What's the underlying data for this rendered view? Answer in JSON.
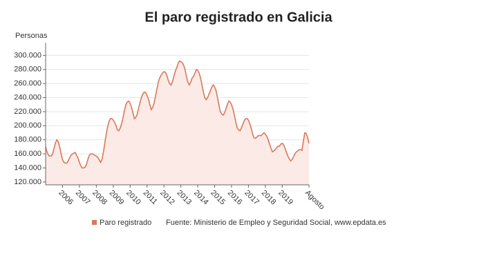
{
  "chart_data": {
    "type": "line",
    "title": "El paro registrado en Galicia",
    "y_label": "Personas",
    "source": "Fuente: Ministerio de Empleo y Seguridad Social, www.epdata.es",
    "categories": [
      null,
      null,
      null,
      null,
      null,
      null,
      null,
      null,
      null,
      null,
      null,
      null,
      "2006",
      null,
      null,
      null,
      null,
      null,
      null,
      null,
      null,
      null,
      null,
      null,
      "2007",
      null,
      null,
      null,
      null,
      null,
      null,
      null,
      null,
      null,
      null,
      null,
      "2008",
      null,
      null,
      null,
      null,
      null,
      null,
      null,
      null,
      null,
      null,
      null,
      "2009",
      null,
      null,
      null,
      null,
      null,
      null,
      null,
      null,
      null,
      null,
      null,
      "2010",
      null,
      null,
      null,
      null,
      null,
      null,
      null,
      null,
      null,
      null,
      null,
      "2011",
      null,
      null,
      null,
      null,
      null,
      null,
      null,
      null,
      null,
      null,
      null,
      "2012",
      null,
      null,
      null,
      null,
      null,
      null,
      null,
      null,
      null,
      null,
      null,
      "2013",
      null,
      null,
      null,
      null,
      null,
      null,
      null,
      null,
      null,
      null,
      null,
      "2014",
      null,
      null,
      null,
      null,
      null,
      null,
      null,
      null,
      null,
      null,
      null,
      "2015",
      null,
      null,
      null,
      null,
      null,
      null,
      null,
      null,
      null,
      null,
      null,
      "2016",
      null,
      null,
      null,
      null,
      null,
      null,
      null,
      null,
      null,
      null,
      null,
      "2017",
      null,
      null,
      null,
      null,
      null,
      null,
      null,
      null,
      null,
      null,
      null,
      "2018",
      null,
      null,
      null,
      null,
      null,
      null,
      null,
      null,
      null,
      null,
      null,
      "2019",
      null,
      null,
      null,
      null,
      null,
      null,
      null,
      null,
      null,
      null,
      null,
      null,
      null,
      null,
      null,
      null,
      null,
      null,
      "Agosto"
    ],
    "series": [
      {
        "name": "Paro registrado",
        "color": "#d9785a",
        "fill": "#fbeae6",
        "values": [
          170000,
          163000,
          158000,
          157000,
          157000,
          160000,
          168000,
          176000,
          180000,
          177000,
          170000,
          160000,
          152000,
          148000,
          147000,
          147000,
          150000,
          154000,
          158000,
          160000,
          161000,
          162000,
          158000,
          154000,
          148000,
          143000,
          140000,
          140000,
          141000,
          145000,
          152000,
          158000,
          160000,
          160000,
          159000,
          158000,
          157000,
          155000,
          152000,
          148000,
          152000,
          162000,
          175000,
          188000,
          198000,
          206000,
          210000,
          210000,
          208000,
          205000,
          200000,
          194000,
          193000,
          197000,
          203000,
          212000,
          222000,
          230000,
          234000,
          235000,
          232000,
          226000,
          218000,
          210000,
          212000,
          216000,
          225000,
          233000,
          240000,
          245000,
          248000,
          247000,
          243000,
          238000,
          230000,
          223000,
          226000,
          232000,
          242000,
          252000,
          262000,
          268000,
          272000,
          275000,
          277000,
          276000,
          272000,
          265000,
          260000,
          258000,
          262000,
          270000,
          277000,
          282000,
          288000,
          292000,
          291000,
          290000,
          286000,
          280000,
          270000,
          262000,
          258000,
          262000,
          268000,
          270000,
          275000,
          280000,
          279000,
          275000,
          268000,
          258000,
          248000,
          240000,
          237000,
          240000,
          245000,
          250000,
          255000,
          258000,
          255000,
          250000,
          240000,
          230000,
          220000,
          217000,
          215000,
          218000,
          224000,
          230000,
          235000,
          234000,
          230000,
          224000,
          215000,
          205000,
          197000,
          194000,
          193000,
          197000,
          202000,
          207000,
          210000,
          210000,
          208000,
          203000,
          196000,
          188000,
          183000,
          182000,
          184000,
          186000,
          186000,
          186000,
          188000,
          190000,
          188000,
          185000,
          180000,
          174000,
          168000,
          163000,
          164000,
          166000,
          169000,
          171000,
          171000,
          174000,
          175000,
          173000,
          168000,
          162000,
          157000,
          153000,
          150000,
          152000,
          156000,
          160000,
          163000,
          164000,
          166000,
          166000,
          165000,
          178000,
          190000,
          189000,
          183000,
          175000
        ]
      }
    ],
    "ylim": [
      116000,
      318000
    ],
    "yticks": [
      {
        "value": 120000,
        "label": "120.000"
      },
      {
        "value": 140000,
        "label": "140.000"
      },
      {
        "value": 160000,
        "label": "160.000"
      },
      {
        "value": 180000,
        "label": "180.000"
      },
      {
        "value": 200000,
        "label": "200.000"
      },
      {
        "value": 220000,
        "label": "220.000"
      },
      {
        "value": 240000,
        "label": "240.000"
      },
      {
        "value": 260000,
        "label": "260.000"
      },
      {
        "value": 280000,
        "label": "280.000"
      },
      {
        "value": 300000,
        "label": "300.000"
      }
    ],
    "grid": true
  }
}
